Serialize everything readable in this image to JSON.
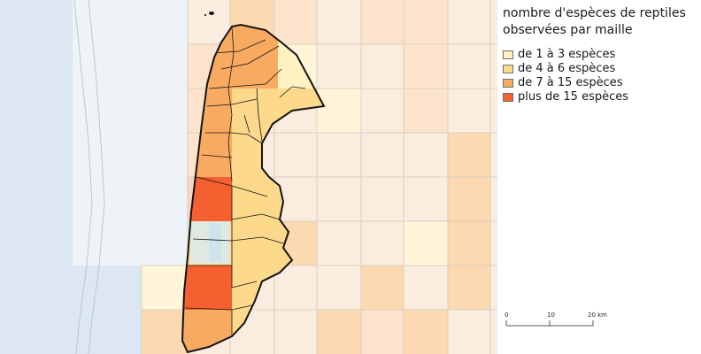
{
  "legend": {
    "title_line1": "nombre d'espèces de reptiles",
    "title_line2": "observées par maille",
    "items": [
      {
        "label": "de 1 à 3 espèces",
        "color": "#fff2c0"
      },
      {
        "label": "de 4 à 6 espèces",
        "color": "#fdd98c"
      },
      {
        "label": "de 7 à 15 espèces",
        "color": "#f8ab60"
      },
      {
        "label": "plus de 15 espèces",
        "color": "#f46030"
      }
    ]
  },
  "scale_bar": {
    "labels": [
      "0",
      "10",
      "20 km"
    ]
  },
  "colors": {
    "sea": "#dce7f2",
    "coast_strip": "#eef3f8",
    "grid_line": "#d8d0c0",
    "pale_cell": "#fbece0",
    "outline": "#141414"
  }
}
